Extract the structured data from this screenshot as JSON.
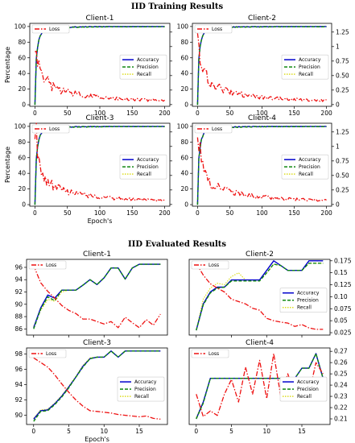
{
  "sections": [
    {
      "title": "IID Training Results"
    },
    {
      "title": "IID Evaluated Results"
    }
  ],
  "ylabel": "Percentage",
  "xlabel": "Epoch's",
  "colors": {
    "Accuracy": "#0000cc",
    "Precision": "#118811",
    "Recall": "#dddd22",
    "Loss": "#ee1111"
  },
  "chart_data": [
    {
      "type": "line",
      "section": 0,
      "title": "Client-1",
      "xlim": [
        -8,
        208
      ],
      "ylim": [
        -2,
        104
      ],
      "y2lim": [
        -0.03,
        1.4
      ],
      "xticks": [
        0,
        50,
        100,
        150,
        200
      ],
      "yticks": [
        0,
        20,
        40,
        60,
        80,
        100
      ],
      "y2ticks": [
        0.0,
        0.25,
        0.5,
        0.75,
        1.0,
        1.25
      ],
      "xticklabels": true,
      "ylabel": true,
      "y2labels": false,
      "xlabel": false,
      "loss_legend_pos": "top-left",
      "legend_pos": "center-right",
      "curve": "train",
      "loss": {
        "x": [
          0,
          2,
          4,
          6,
          8,
          12,
          16,
          22,
          30,
          40,
          55,
          70,
          90,
          110,
          130,
          150,
          170,
          190,
          200
        ],
        "y": [
          1.0,
          1.1,
          0.9,
          0.72,
          0.6,
          0.5,
          0.42,
          0.36,
          0.3,
          0.25,
          0.21,
          0.17,
          0.14,
          0.12,
          0.1,
          0.09,
          0.08,
          0.07,
          0.07
        ]
      }
    },
    {
      "type": "line",
      "section": 0,
      "title": "Client-2",
      "xlim": [
        -8,
        208
      ],
      "ylim": [
        -2,
        104
      ],
      "y2lim": [
        -0.03,
        1.4
      ],
      "xticks": [
        0,
        50,
        100,
        150,
        200
      ],
      "yticks": [
        0,
        20,
        40,
        60,
        80,
        100
      ],
      "y2ticks": [
        0.0,
        0.25,
        0.5,
        0.75,
        1.0,
        1.25
      ],
      "xticklabels": true,
      "ylabel": false,
      "y2labels": true,
      "xlabel": false,
      "loss_legend_pos": "top-left",
      "legend_pos": "center-right",
      "curve": "train",
      "loss": {
        "x": [
          0,
          2,
          4,
          6,
          8,
          12,
          16,
          22,
          30,
          40,
          55,
          70,
          90,
          110,
          130,
          150,
          170,
          190,
          200
        ],
        "y": [
          1.0,
          1.1,
          0.9,
          0.72,
          0.6,
          0.5,
          0.42,
          0.36,
          0.3,
          0.25,
          0.21,
          0.17,
          0.14,
          0.12,
          0.1,
          0.09,
          0.08,
          0.07,
          0.07
        ]
      }
    },
    {
      "type": "line",
      "section": 0,
      "title": "Client-3",
      "xlim": [
        -8,
        208
      ],
      "ylim": [
        -2,
        104
      ],
      "y2lim": [
        -0.03,
        1.4
      ],
      "xticks": [
        0,
        50,
        100,
        150,
        200
      ],
      "yticks": [
        0,
        20,
        40,
        60,
        80,
        100
      ],
      "y2ticks": [
        0.0,
        0.25,
        0.5,
        0.75,
        1.0,
        1.25
      ],
      "xticklabels": true,
      "ylabel": true,
      "y2labels": false,
      "xlabel": true,
      "loss_legend_pos": "top-left",
      "legend_pos": "center-right",
      "curve": "train",
      "loss": {
        "x": [
          0,
          2,
          4,
          6,
          8,
          12,
          16,
          22,
          30,
          40,
          55,
          70,
          90,
          110,
          130,
          150,
          170,
          190,
          200
        ],
        "y": [
          1.0,
          1.1,
          0.9,
          0.72,
          0.6,
          0.5,
          0.42,
          0.36,
          0.3,
          0.25,
          0.21,
          0.17,
          0.14,
          0.12,
          0.1,
          0.09,
          0.08,
          0.07,
          0.07
        ]
      }
    },
    {
      "type": "line",
      "section": 0,
      "title": "Client-4",
      "xlim": [
        -8,
        208
      ],
      "ylim": [
        -2,
        104
      ],
      "y2lim": [
        -0.03,
        1.4
      ],
      "xticks": [
        0,
        50,
        100,
        150,
        200
      ],
      "yticks": [
        0,
        20,
        40,
        60,
        80,
        100
      ],
      "y2ticks": [
        0.0,
        0.25,
        0.5,
        0.75,
        1.0,
        1.25
      ],
      "xticklabels": true,
      "ylabel": false,
      "y2labels": true,
      "xlabel": false,
      "loss_legend_pos": "top-left",
      "legend_pos": "center-right",
      "curve": "train",
      "loss": {
        "x": [
          0,
          2,
          4,
          6,
          8,
          12,
          16,
          22,
          30,
          40,
          55,
          70,
          90,
          110,
          130,
          150,
          170,
          190,
          200
        ],
        "y": [
          1.0,
          1.1,
          0.9,
          0.72,
          0.6,
          0.5,
          0.42,
          0.36,
          0.3,
          0.25,
          0.21,
          0.17,
          0.14,
          0.12,
          0.1,
          0.09,
          0.08,
          0.07,
          0.07
        ]
      }
    },
    {
      "type": "line",
      "section": 1,
      "title": "Client-1",
      "xlim": [
        -1,
        19
      ],
      "ylim": [
        85,
        97.3
      ],
      "y2lim": null,
      "xticks": [
        0,
        5,
        10,
        15
      ],
      "yticks": [
        86,
        88,
        90,
        92,
        94,
        96
      ],
      "y2ticks": [],
      "xticklabels": false,
      "ylabel": false,
      "y2labels": false,
      "xlabel": false,
      "loss_legend_pos": "top-left",
      "legend_pos": "none",
      "series": [
        {
          "name": "Accuracy",
          "values": [
            86.2,
            89.4,
            91.5,
            91.0,
            92.3,
            92.3,
            92.3,
            93.1,
            94.0,
            93.2,
            94.3,
            95.9,
            95.9,
            94.1,
            95.9,
            96.5,
            96.5,
            96.5,
            96.5
          ]
        },
        {
          "name": "Precision",
          "values": [
            86.0,
            89.2,
            91.2,
            90.6,
            92.3,
            92.3,
            92.3,
            93.1,
            94.0,
            93.2,
            94.3,
            95.9,
            95.9,
            94.1,
            95.9,
            96.5,
            96.5,
            96.5,
            96.5
          ]
        },
        {
          "name": "Recall",
          "values": [
            86.4,
            89.0,
            90.8,
            90.5,
            92.0,
            92.3,
            92.3,
            93.1,
            94.0,
            93.2,
            94.3,
            95.9,
            95.9,
            94.1,
            95.9,
            96.5,
            96.5,
            96.5,
            96.5
          ]
        },
        {
          "name": "Loss",
          "values": [
            96.3,
            93.5,
            92.1,
            91.0,
            89.8,
            89.0,
            88.5,
            87.6,
            87.6,
            87.2,
            86.8,
            87.2,
            86.2,
            87.9,
            87.0,
            86.2,
            87.5,
            86.6,
            88.4
          ]
        }
      ]
    },
    {
      "type": "line",
      "section": 1,
      "title": "Client-2",
      "xlim": [
        -1,
        19
      ],
      "ylim": [
        0.02,
        0.178
      ],
      "y2lim": null,
      "xticks": [
        0,
        5,
        10,
        15
      ],
      "yticks": [],
      "y2ticks": [
        0.025,
        0.05,
        0.075,
        0.1,
        0.125,
        0.15,
        0.175
      ],
      "xticklabels": false,
      "ylabel": false,
      "y2labels": true,
      "xlabel": false,
      "loss_legend_pos": "top-left",
      "legend_pos": "center-right",
      "series": [
        {
          "name": "Accuracy",
          "values": [
            0.03,
            0.085,
            0.11,
            0.12,
            0.12,
            0.135,
            0.135,
            0.135,
            0.135,
            0.135,
            0.155,
            0.175,
            0.165,
            0.155,
            0.155,
            0.155,
            0.175,
            0.175,
            0.175
          ]
        },
        {
          "name": "Precision",
          "values": [
            0.03,
            0.083,
            0.108,
            0.118,
            0.12,
            0.133,
            0.133,
            0.133,
            0.133,
            0.133,
            0.15,
            0.168,
            0.165,
            0.155,
            0.155,
            0.155,
            0.17,
            0.17,
            0.17
          ]
        },
        {
          "name": "Recall",
          "values": [
            0.03,
            0.095,
            0.118,
            0.128,
            0.125,
            0.142,
            0.15,
            0.135,
            0.135,
            0.135,
            0.15,
            0.168,
            0.165,
            0.155,
            0.155,
            0.155,
            0.17,
            0.17,
            0.17
          ]
        },
        {
          "name": "Loss",
          "values": [
            0.17,
            0.145,
            0.127,
            0.118,
            0.11,
            0.095,
            0.09,
            0.085,
            0.076,
            0.072,
            0.055,
            0.05,
            0.047,
            0.045,
            0.038,
            0.042,
            0.035,
            0.032,
            0.032
          ]
        }
      ]
    },
    {
      "type": "line",
      "section": 1,
      "title": "Client-3",
      "xlim": [
        -1,
        19
      ],
      "ylim": [
        88.8,
        98.8
      ],
      "y2lim": null,
      "xticks": [
        0,
        5,
        10,
        15
      ],
      "yticks": [
        90,
        92,
        94,
        96,
        98
      ],
      "y2ticks": [],
      "xticklabels": true,
      "ylabel": false,
      "y2labels": false,
      "xlabel": true,
      "loss_legend_pos": "top-left",
      "legend_pos": "center-right",
      "series": [
        {
          "name": "Accuracy",
          "values": [
            89.5,
            90.6,
            90.7,
            91.5,
            92.5,
            93.7,
            95.0,
            96.4,
            97.4,
            97.6,
            97.6,
            98.4,
            97.6,
            98.4,
            98.4,
            98.4,
            98.4,
            98.4,
            98.4
          ]
        },
        {
          "name": "Precision",
          "values": [
            89.2,
            90.5,
            90.6,
            91.4,
            92.4,
            93.6,
            95.0,
            96.3,
            97.4,
            97.6,
            97.6,
            98.4,
            97.6,
            98.4,
            98.4,
            98.4,
            98.4,
            98.4,
            98.4
          ]
        },
        {
          "name": "Recall",
          "values": [
            89.6,
            90.7,
            90.8,
            91.6,
            92.6,
            93.8,
            95.1,
            96.5,
            97.5,
            97.6,
            97.6,
            98.4,
            97.6,
            98.4,
            98.4,
            98.4,
            98.4,
            98.4,
            98.4
          ]
        },
        {
          "name": "Loss",
          "values": [
            97.5,
            96.9,
            96.3,
            95.3,
            94.1,
            93.0,
            92.0,
            91.2,
            90.6,
            90.5,
            90.4,
            90.3,
            90.1,
            90.0,
            89.9,
            89.8,
            89.9,
            89.6,
            89.5
          ]
        }
      ]
    },
    {
      "type": "line",
      "section": 1,
      "title": "Client-4",
      "xlim": [
        -1,
        19
      ],
      "ylim": [
        0.205,
        0.273
      ],
      "y2lim": null,
      "xticks": [
        0,
        5,
        10,
        15
      ],
      "yticks": [],
      "y2ticks": [
        0.21,
        0.22,
        0.23,
        0.24,
        0.25,
        0.26,
        0.27
      ],
      "xticklabels": true,
      "ylabel": false,
      "y2labels": true,
      "xlabel": false,
      "loss_legend_pos": "top-left",
      "legend_pos": "center-right",
      "series": [
        {
          "name": "Accuracy",
          "values": [
            0.21,
            0.225,
            0.246,
            0.246,
            0.246,
            0.246,
            0.246,
            0.246,
            0.246,
            0.246,
            0.246,
            0.246,
            0.246,
            0.246,
            0.246,
            0.255,
            0.255,
            0.268,
            0.246
          ]
        },
        {
          "name": "Precision",
          "values": [
            0.21,
            0.224,
            0.246,
            0.246,
            0.246,
            0.246,
            0.246,
            0.246,
            0.246,
            0.246,
            0.246,
            0.246,
            0.246,
            0.246,
            0.246,
            0.255,
            0.255,
            0.268,
            0.246
          ]
        },
        {
          "name": "Recall",
          "values": [
            0.211,
            0.225,
            0.246,
            0.246,
            0.246,
            0.246,
            0.246,
            0.246,
            0.246,
            0.246,
            0.246,
            0.246,
            0.246,
            0.246,
            0.246,
            0.255,
            0.255,
            0.268,
            0.246
          ]
        },
        {
          "name": "Loss",
          "values": [
            0.232,
            0.212,
            0.217,
            0.213,
            0.232,
            0.245,
            0.225,
            0.256,
            0.232,
            0.262,
            0.228,
            0.268,
            0.23,
            0.25,
            0.232,
            0.24,
            0.232,
            0.26,
            0.25
          ]
        }
      ]
    }
  ]
}
